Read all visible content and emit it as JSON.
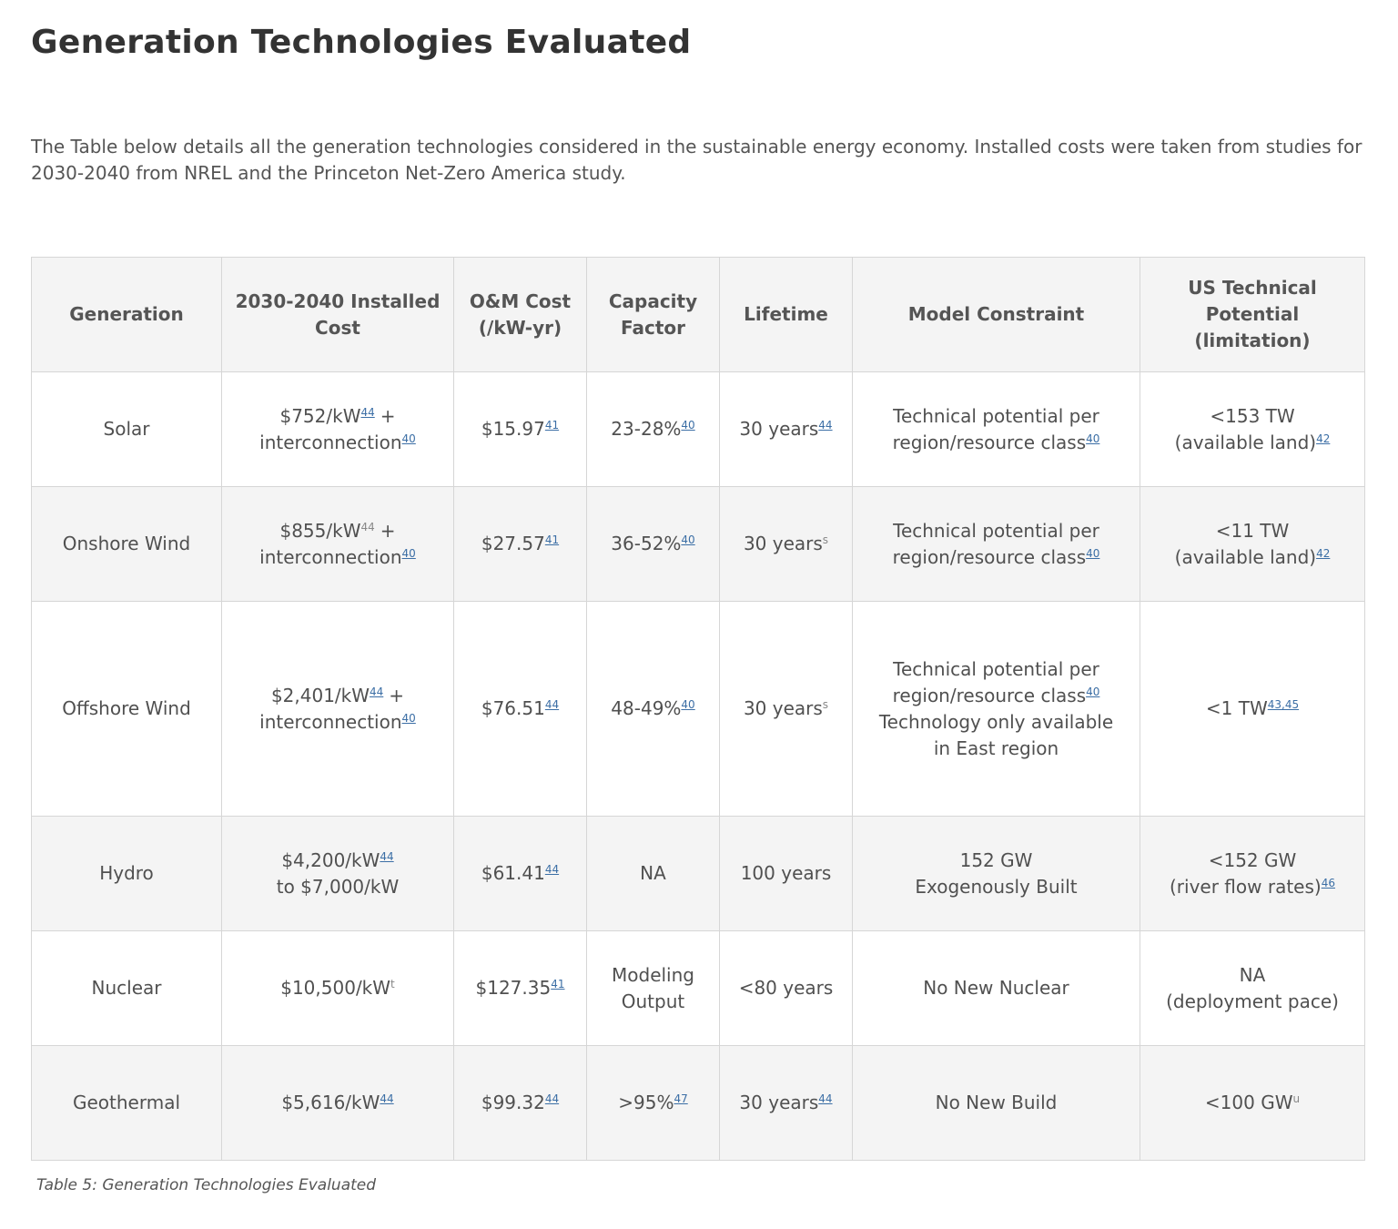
{
  "header": {
    "title": "Generation Technologies Evaluated"
  },
  "intro": "The Table below details all the generation technologies considered in the sustainable energy economy. Installed costs were taken from studies for 2030-2040 from NREL and the Princeton Net-Zero America study.",
  "table": {
    "headers": [
      [
        "Generation"
      ],
      [
        "2030-2040 Installed",
        "Cost"
      ],
      [
        "O&M Cost",
        "(/kW-yr)"
      ],
      [
        "Capacity",
        "Factor"
      ],
      [
        "Lifetime"
      ],
      [
        "Model Constraint"
      ],
      [
        "US Technical",
        "Potential",
        "(limitation)"
      ]
    ],
    "rows": [
      [
        [
          "Solar"
        ],
        [
          [
            {
              "text": "$752/kW",
              "ref": "44"
            },
            {
              "text": "+"
            }
          ],
          [
            {
              "text": "interconnection",
              "ref": "40"
            }
          ]
        ],
        [
          [
            {
              "text": "$15.97",
              "ref": "41"
            }
          ]
        ],
        [
          [
            {
              "text": "23-28%",
              "ref": "40"
            }
          ]
        ],
        [
          [
            {
              "text": "30 years",
              "ref": "44"
            }
          ]
        ],
        [
          "Technical potential per",
          [
            {
              "text": "region/resource class",
              "ref": "40"
            }
          ]
        ],
        [
          "<153 TW",
          [
            {
              "text": "(available land)",
              "ref": "42"
            }
          ]
        ]
      ],
      [
        [
          "Onshore Wind"
        ],
        [
          [
            {
              "text": "$855/kW",
              "note": "44"
            },
            {
              "text": "+"
            }
          ],
          [
            {
              "text": "interconnection",
              "ref": "40"
            }
          ]
        ],
        [
          [
            {
              "text": "$27.57",
              "ref": "41"
            }
          ]
        ],
        [
          [
            {
              "text": "36-52%",
              "ref": "40"
            }
          ]
        ],
        [
          [
            {
              "text": "30 years",
              "note": "s"
            }
          ]
        ],
        [
          "Technical potential per",
          [
            {
              "text": "region/resource class",
              "ref": "40"
            }
          ]
        ],
        [
          "<11 TW",
          [
            {
              "text": "(available land)",
              "ref": "42"
            }
          ]
        ]
      ],
      [
        [
          "Offshore Wind"
        ],
        [
          [
            {
              "text": "$2,401/kW",
              "ref": "44"
            },
            {
              "text": "+"
            }
          ],
          [
            {
              "text": "interconnection",
              "ref": "40"
            }
          ]
        ],
        [
          [
            {
              "text": "$76.51",
              "ref": "44"
            }
          ]
        ],
        [
          [
            {
              "text": "48-49%",
              "ref": "40"
            }
          ]
        ],
        [
          [
            {
              "text": "30 years",
              "note": "s"
            }
          ]
        ],
        [
          "Technical potential per",
          [
            {
              "text": "region/resource class",
              "ref": "40"
            }
          ],
          "Technology only available",
          "in East region"
        ],
        [
          [
            {
              "text": "<1 TW",
              "ref": "43,45"
            }
          ]
        ]
      ],
      [
        [
          "Hydro"
        ],
        [
          [
            {
              "text": "$4,200/kW",
              "ref": "44"
            }
          ],
          "to $7,000/kW"
        ],
        [
          [
            {
              "text": "$61.41",
              "ref": "44"
            }
          ]
        ],
        [
          "NA"
        ],
        [
          "100 years"
        ],
        [
          "152 GW",
          "Exogenously Built"
        ],
        [
          "<152 GW",
          [
            {
              "text": "(river flow rates)",
              "ref": "46"
            }
          ]
        ]
      ],
      [
        [
          "Nuclear"
        ],
        [
          [
            {
              "text": "$10,500/kW",
              "note": "t"
            }
          ]
        ],
        [
          [
            {
              "text": "$127.35",
              "ref": "41"
            }
          ]
        ],
        [
          "Modeling",
          "Output"
        ],
        [
          "<80 years"
        ],
        [
          "No New Nuclear"
        ],
        [
          "NA",
          "(deployment pace)"
        ]
      ],
      [
        [
          "Geothermal"
        ],
        [
          [
            {
              "text": "$5,616/kW",
              "ref": "44"
            }
          ]
        ],
        [
          [
            {
              "text": "$99.32",
              "ref": "44"
            }
          ]
        ],
        [
          [
            {
              "text": ">95%",
              "ref": "47"
            }
          ]
        ],
        [
          [
            {
              "text": "30 years",
              "ref": "44"
            }
          ]
        ],
        [
          "No New Build"
        ],
        [
          [
            {
              "text": "<100 GW",
              "note": "u"
            }
          ]
        ]
      ]
    ],
    "caption": "Table 5: Generation Technologies Evaluated"
  }
}
